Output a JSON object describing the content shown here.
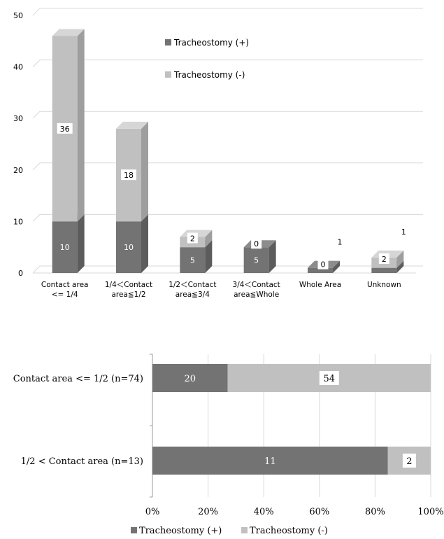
{
  "colors": {
    "tracheostomy_plus": "#737373",
    "tracheostomy_plus_top": "#8c8c8c",
    "tracheostomy_plus_side": "#5c5c5c",
    "tracheostomy_minus": "#c0c0c0",
    "tracheostomy_minus_top": "#d6d6d6",
    "tracheostomy_minus_side": "#9e9e9e",
    "grid": "#d9d9d9",
    "axis_text": "#000000"
  },
  "chart_data": [
    {
      "type": "bar",
      "stacked": true,
      "style": "3d",
      "categories": [
        [
          "Contact area",
          "<= 1/4"
        ],
        [
          "1/4＜Contact",
          "area≦1/2"
        ],
        [
          "1/2＜Contact",
          "area≦3/4"
        ],
        [
          "3/4＜Contact",
          "area≦Whole"
        ],
        [
          "Whole Area"
        ],
        [
          "Unknown"
        ]
      ],
      "series": [
        {
          "name": "Tracheostomy (+)",
          "values": [
            10,
            10,
            5,
            5,
            1,
            1
          ],
          "labels": [
            "10",
            "10",
            "5",
            "5",
            "1",
            "1"
          ]
        },
        {
          "name": "Tracheostomy (-)",
          "values": [
            36,
            18,
            2,
            0,
            0,
            2
          ],
          "labels": [
            "36",
            "18",
            "2",
            "0",
            "0",
            "2"
          ]
        }
      ],
      "yticks": [
        "0",
        "10",
        "20",
        "30",
        "40",
        "50"
      ],
      "ylim": [
        0,
        50
      ],
      "grid": true,
      "legend_position": "inside-top-right"
    },
    {
      "type": "bar",
      "orientation": "horizontal",
      "stacked_percent": true,
      "categories": [
        "Contact area <= 1/2 (n=74)",
        "1/2 < Contact area (n=13)"
      ],
      "series": [
        {
          "name": "Tracheostomy (+)",
          "values": [
            20,
            11
          ]
        },
        {
          "name": "Tracheostomy (-)",
          "values": [
            54,
            2
          ]
        }
      ],
      "xticks": [
        "0%",
        "20%",
        "40%",
        "60%",
        "80%",
        "100%"
      ],
      "xlim": [
        0,
        100
      ],
      "grid": true,
      "legend_position": "bottom"
    }
  ]
}
